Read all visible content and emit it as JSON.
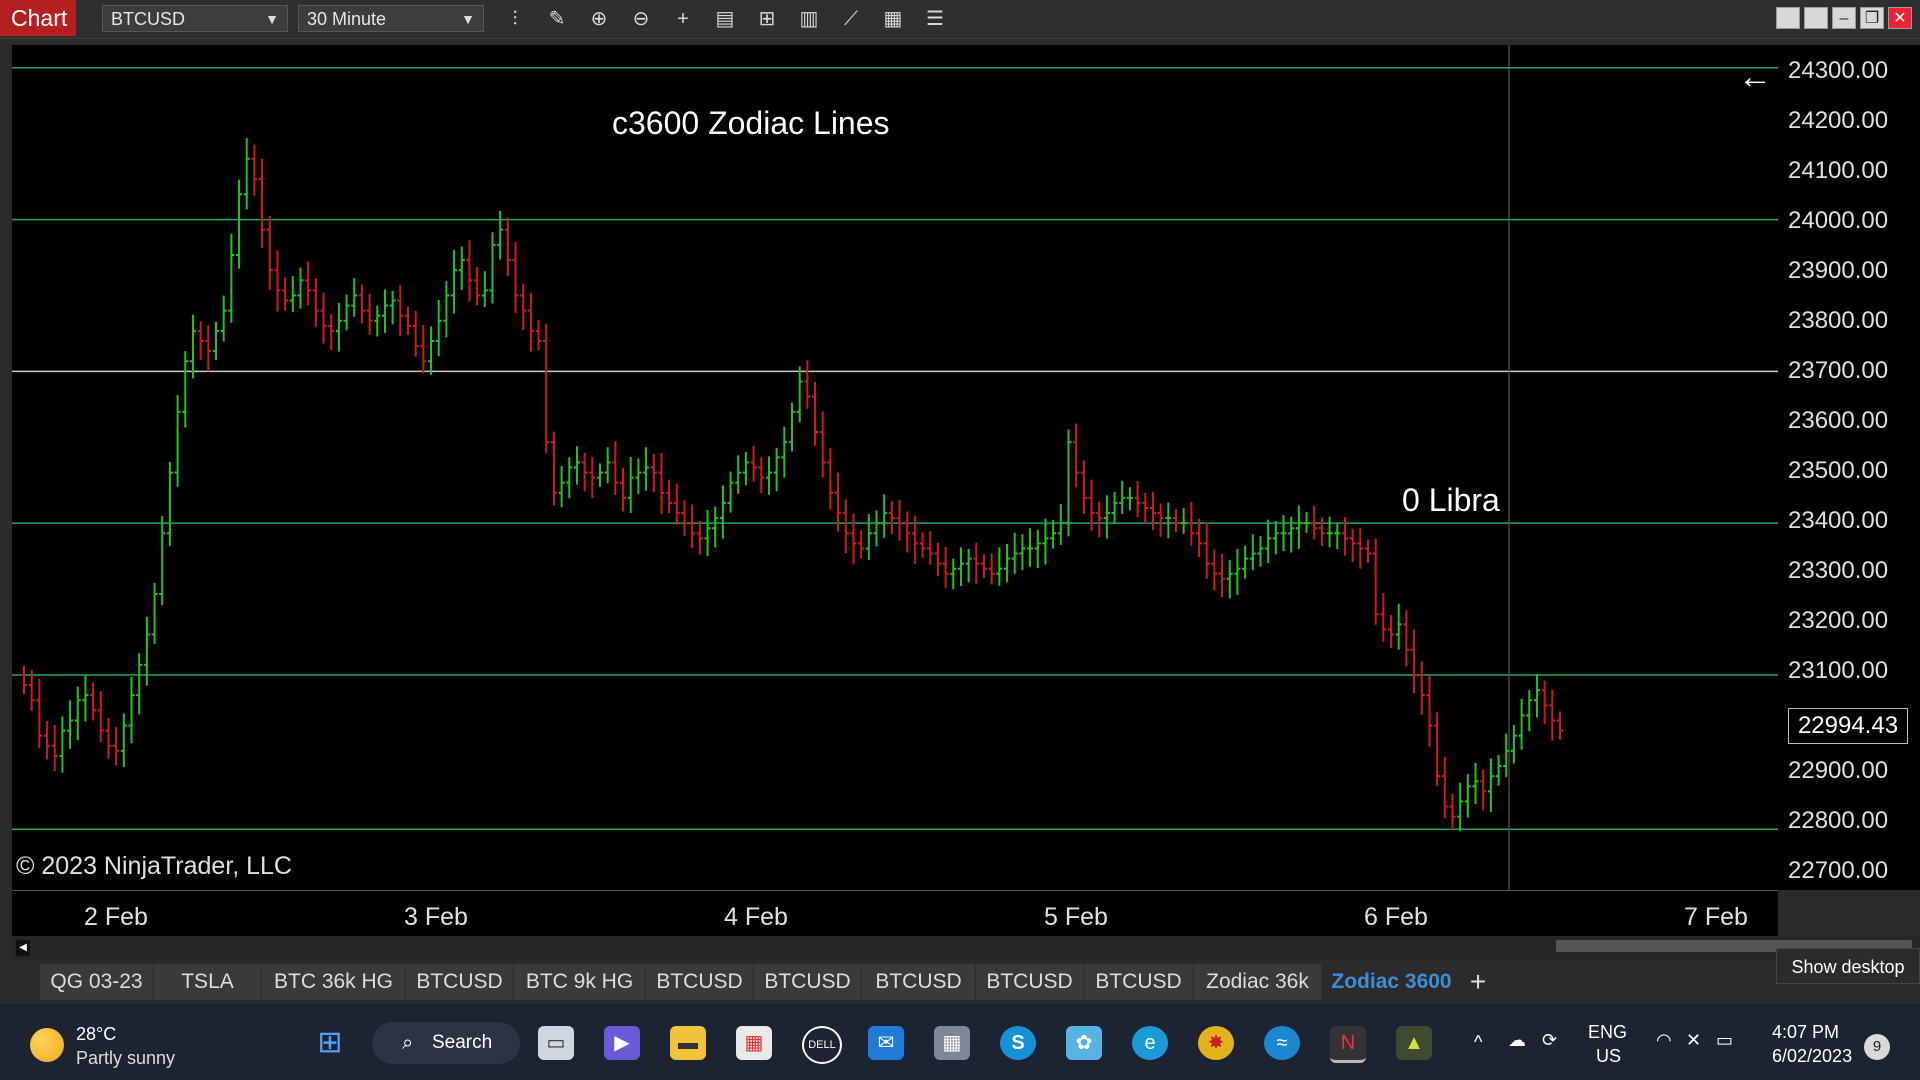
{
  "toolbar": {
    "app_label": "Chart",
    "instrument": "BTCUSD",
    "timeframe": "30 Minute",
    "tools": [
      "bar-type-icon",
      "draw-tool-icon",
      "zoom-in-icon",
      "zoom-out-icon",
      "crosshair-icon",
      "properties-icon",
      "template-icon",
      "data-box-icon",
      "strategy-icon",
      "indicator-icon",
      "list-icon"
    ]
  },
  "chart": {
    "title": "c3600 Zodiac Lines",
    "line_label": "0 Libra",
    "copyright": "© 2023 NinjaTrader, LLC",
    "last_price": "22994.43",
    "price_ticks": [
      "24300.00",
      "24200.00",
      "24100.00",
      "24000.00",
      "23900.00",
      "23800.00",
      "23700.00",
      "23600.00",
      "23500.00",
      "23400.00",
      "23300.00",
      "23200.00",
      "23100.00",
      "22900.00",
      "22800.00",
      "22700.00"
    ],
    "date_ticks": [
      "2 Feb",
      "3 Feb",
      "4 Feb",
      "5 Feb",
      "6 Feb",
      "7 Feb"
    ],
    "colors": {
      "up": "#22c41c",
      "down": "#d21a1a",
      "zodiac_line": "#1faa6a",
      "white_line": "#c8c8c8"
    }
  },
  "chart_data": {
    "type": "ohlc",
    "title": "c3600 Zodiac Lines",
    "x_unit": "30 minute bars",
    "x_range": [
      "2 Feb",
      "7 Feb"
    ],
    "ylim": [
      22675,
      24345
    ],
    "horizontal_lines": [
      {
        "value": 24300,
        "label": ""
      },
      {
        "value": 24000,
        "label": ""
      },
      {
        "value": 23700,
        "label": ""
      },
      {
        "value": 23400,
        "label": "0 Libra"
      },
      {
        "value": 23100,
        "label": ""
      },
      {
        "value": 22795,
        "label": ""
      }
    ],
    "last_price": 22994.43,
    "closes": [
      23080,
      23050,
      22980,
      22960,
      22940,
      22990,
      23010,
      23050,
      23060,
      23030,
      22990,
      22960,
      22950,
      23000,
      23060,
      23120,
      23180,
      23260,
      23380,
      23500,
      23620,
      23720,
      23780,
      23760,
      23740,
      23780,
      23820,
      23930,
      24050,
      24120,
      24080,
      23980,
      23900,
      23860,
      23840,
      23850,
      23880,
      23860,
      23820,
      23790,
      23780,
      23800,
      23830,
      23850,
      23820,
      23800,
      23810,
      23830,
      23840,
      23810,
      23790,
      23750,
      23720,
      23760,
      23800,
      23850,
      23900,
      23920,
      23880,
      23850,
      23860,
      23950,
      23980,
      23920,
      23850,
      23820,
      23780,
      23760,
      23560,
      23460,
      23480,
      23510,
      23520,
      23500,
      23490,
      23500,
      23520,
      23480,
      23450,
      23490,
      23500,
      23510,
      23500,
      23460,
      23440,
      23420,
      23400,
      23380,
      23370,
      23390,
      23410,
      23440,
      23480,
      23500,
      23520,
      23510,
      23490,
      23500,
      23530,
      23560,
      23620,
      23680,
      23650,
      23580,
      23520,
      23460,
      23420,
      23380,
      23360,
      23350,
      23380,
      23400,
      23420,
      23410,
      23400,
      23380,
      23360,
      23350,
      23340,
      23320,
      23300,
      23310,
      23320,
      23330,
      23320,
      23310,
      23300,
      23310,
      23330,
      23340,
      23350,
      23350,
      23360,
      23370,
      23380,
      23400,
      23560,
      23500,
      23450,
      23420,
      23410,
      23420,
      23440,
      23450,
      23450,
      23440,
      23430,
      23420,
      23410,
      23410,
      23400,
      23400,
      23380,
      23360,
      23320,
      23300,
      23290,
      23300,
      23310,
      23330,
      23340,
      23350,
      23370,
      23380,
      23380,
      23390,
      23400,
      23400,
      23390,
      23380,
      23380,
      23380,
      23370,
      23360,
      23350,
      23340,
      23220,
      23190,
      23180,
      23200,
      23150,
      23100,
      23060,
      23000,
      22900,
      22840,
      22820,
      22850,
      22880,
      22890,
      22870,
      22900,
      22920,
      22950,
      22980,
      23020,
      23050,
      23070,
      23040,
      23010,
      22990
    ],
    "ylabel": ""
  },
  "tabs": [
    {
      "label": "QG 03-23"
    },
    {
      "label": "TSLA"
    },
    {
      "label": "BTC 36k HG"
    },
    {
      "label": "BTCUSD"
    },
    {
      "label": "BTC 9k HG"
    },
    {
      "label": "BTCUSD"
    },
    {
      "label": "BTCUSD"
    },
    {
      "label": "BTCUSD"
    },
    {
      "label": "BTCUSD"
    },
    {
      "label": "BTCUSD"
    },
    {
      "label": "Zodiac 36k"
    },
    {
      "label": "Zodiac 3600"
    }
  ],
  "show_desktop": "Show desktop",
  "taskbar": {
    "weather_temp": "28°C",
    "weather_desc": "Partly sunny",
    "search": "Search",
    "lang": "ENG",
    "region": "US",
    "time": "4:07 PM",
    "date": "6/02/2023",
    "notifications": "9",
    "apps": [
      "start-icon",
      "task-view-icon",
      "chat-icon",
      "file-explorer-icon",
      "store-icon",
      "dell-icon",
      "mail-icon",
      "calculator-icon",
      "skype-icon",
      "paint-icon",
      "edge-icon",
      "game-icon",
      "weather-app-icon",
      "ninjatrader-icon",
      "terminal-icon"
    ]
  }
}
